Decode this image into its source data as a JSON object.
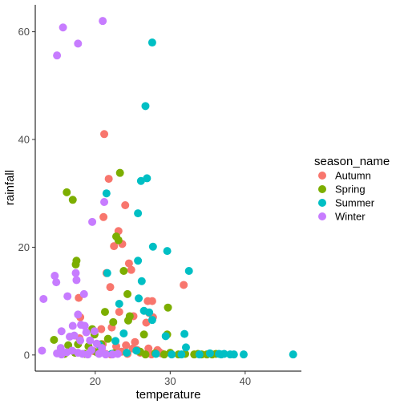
{
  "chart_data": {
    "type": "scatter",
    "xlabel": "temperature",
    "ylabel": "rainfall",
    "xlim": [
      12,
      47.5
    ],
    "ylim": [
      -3,
      65
    ],
    "xticks": [
      20,
      30,
      40
    ],
    "yticks": [
      0,
      20,
      40,
      60
    ],
    "grid": false,
    "legend": {
      "title": "season_name",
      "placement": "right"
    },
    "series": [
      {
        "name": "Autumn",
        "color": "#F8766D",
        "points": [
          [
            21.2,
            41.0
          ],
          [
            21.8,
            32.7
          ],
          [
            23.1,
            23.0
          ],
          [
            24.0,
            27.8
          ],
          [
            23.6,
            20.6
          ],
          [
            21.1,
            25.6
          ],
          [
            22.5,
            20.2
          ],
          [
            24.5,
            17.0
          ],
          [
            24.8,
            15.8
          ],
          [
            22.0,
            12.6
          ],
          [
            21.5,
            15.2
          ],
          [
            27.0,
            10.0
          ],
          [
            27.6,
            10.0
          ],
          [
            27.2,
            7.8
          ],
          [
            27.7,
            7.0
          ],
          [
            26.8,
            6.0
          ],
          [
            25.1,
            7.2
          ],
          [
            23.2,
            8.0
          ],
          [
            22.2,
            5.1
          ],
          [
            20.8,
            4.8
          ],
          [
            21.0,
            2.0
          ],
          [
            22.8,
            1.6
          ],
          [
            24.1,
            1.8
          ],
          [
            25.6,
            0.9
          ],
          [
            25.0,
            1.2
          ],
          [
            25.3,
            2.4
          ],
          [
            27.1,
            1.2
          ],
          [
            28.3,
            0.9
          ],
          [
            28.5,
            0.6
          ],
          [
            31.8,
            13.0
          ],
          [
            17.8,
            10.6
          ],
          [
            17.9,
            3.1
          ],
          [
            18.0,
            7.0
          ],
          [
            21.4,
            0.2
          ],
          [
            22.1,
            0.1
          ],
          [
            22.9,
            0.3
          ],
          [
            23.5,
            0.6
          ],
          [
            24.3,
            0.2
          ],
          [
            26.0,
            0.4
          ],
          [
            27.5,
            0.1
          ],
          [
            28.8,
            0.3
          ],
          [
            19.8,
            0.7
          ]
        ]
      },
      {
        "name": "Spring",
        "color": "#7CAE00",
        "points": [
          [
            23.3,
            33.8
          ],
          [
            16.2,
            30.2
          ],
          [
            17.0,
            28.8
          ],
          [
            22.8,
            22.0
          ],
          [
            23.1,
            21.3
          ],
          [
            17.5,
            17.5
          ],
          [
            17.4,
            16.8
          ],
          [
            23.8,
            15.6
          ],
          [
            24.3,
            11.3
          ],
          [
            29.7,
            8.8
          ],
          [
            21.3,
            8.0
          ],
          [
            24.6,
            7.2
          ],
          [
            24.4,
            6.4
          ],
          [
            22.4,
            6.1
          ],
          [
            19.6,
            4.8
          ],
          [
            19.9,
            3.8
          ],
          [
            21.7,
            3.0
          ],
          [
            26.5,
            3.8
          ],
          [
            29.6,
            3.8
          ],
          [
            14.5,
            2.8
          ],
          [
            16.4,
            1.8
          ],
          [
            17.7,
            2.0
          ],
          [
            19.1,
            1.6
          ],
          [
            20.8,
            2.0
          ],
          [
            26.0,
            0.6
          ],
          [
            32.0,
            0.2
          ],
          [
            33.2,
            0.1
          ],
          [
            34.2,
            0.1
          ],
          [
            34.9,
            0.1
          ],
          [
            35.6,
            0.1
          ],
          [
            36.1,
            0.2
          ],
          [
            28.0,
            0.3
          ],
          [
            30.0,
            0.4
          ],
          [
            17.3,
            0.4
          ],
          [
            15.9,
            0.2
          ],
          [
            18.6,
            0.2
          ],
          [
            22.5,
            0.3
          ],
          [
            26.7,
            0.1
          ],
          [
            29.2,
            0.1
          ],
          [
            31.1,
            0.1
          ],
          [
            33.7,
            0.2
          ],
          [
            20.2,
            0.5
          ]
        ]
      },
      {
        "name": "Summer",
        "color": "#00BFC4",
        "points": [
          [
            27.6,
            58.0
          ],
          [
            26.7,
            46.2
          ],
          [
            26.9,
            32.8
          ],
          [
            26.1,
            32.3
          ],
          [
            21.5,
            30.0
          ],
          [
            25.7,
            26.3
          ],
          [
            27.7,
            20.1
          ],
          [
            29.6,
            19.3
          ],
          [
            25.7,
            17.5
          ],
          [
            32.5,
            15.6
          ],
          [
            21.6,
            15.2
          ],
          [
            26.2,
            13.7
          ],
          [
            25.8,
            10.5
          ],
          [
            23.2,
            9.5
          ],
          [
            26.5,
            8.2
          ],
          [
            27.2,
            7.9
          ],
          [
            27.6,
            6.5
          ],
          [
            23.8,
            4.0
          ],
          [
            31.9,
            3.9
          ],
          [
            29.4,
            3.5
          ],
          [
            22.7,
            2.6
          ],
          [
            20.5,
            1.9
          ],
          [
            32.1,
            1.4
          ],
          [
            25.5,
            0.8
          ],
          [
            35.3,
            0.3
          ],
          [
            36.5,
            0.2
          ],
          [
            37.2,
            0.2
          ],
          [
            38.0,
            0.1
          ],
          [
            38.5,
            0.1
          ],
          [
            39.8,
            0.1
          ],
          [
            46.4,
            0.1
          ],
          [
            36.8,
            0.1
          ],
          [
            28.1,
            0.2
          ],
          [
            30.2,
            0.1
          ],
          [
            24.2,
            0.4
          ],
          [
            22.2,
            0.2
          ],
          [
            33.9,
            0.1
          ],
          [
            31.5,
            0.1
          ]
        ]
      },
      {
        "name": "Winter",
        "color": "#C77CFF",
        "points": [
          [
            21.0,
            62.0
          ],
          [
            15.7,
            60.8
          ],
          [
            17.7,
            57.8
          ],
          [
            14.9,
            55.6
          ],
          [
            21.2,
            28.4
          ],
          [
            19.6,
            24.7
          ],
          [
            14.6,
            14.7
          ],
          [
            14.8,
            13.5
          ],
          [
            17.4,
            15.2
          ],
          [
            17.5,
            13.9
          ],
          [
            18.5,
            11.3
          ],
          [
            16.3,
            10.9
          ],
          [
            13.1,
            10.4
          ],
          [
            17.7,
            7.5
          ],
          [
            18.1,
            5.6
          ],
          [
            18.6,
            5.4
          ],
          [
            18.8,
            4.2
          ],
          [
            19.9,
            4.4
          ],
          [
            17.0,
            5.4
          ],
          [
            17.2,
            3.6
          ],
          [
            16.6,
            3.4
          ],
          [
            15.5,
            4.4
          ],
          [
            18.0,
            2.7
          ],
          [
            19.3,
            2.7
          ],
          [
            20.2,
            2.1
          ],
          [
            20.9,
            1.3
          ],
          [
            15.4,
            1.3
          ],
          [
            16.2,
            0.5
          ],
          [
            16.9,
            0.8
          ],
          [
            14.9,
            0.3
          ],
          [
            15.5,
            0.1
          ],
          [
            12.9,
            0.8
          ],
          [
            17.7,
            0.4
          ],
          [
            18.3,
            0.2
          ],
          [
            19.0,
            0.1
          ],
          [
            20.5,
            0.2
          ],
          [
            21.4,
            0.1
          ],
          [
            22.3,
            0.1
          ],
          [
            23.0,
            0.2
          ],
          [
            19.5,
            0.9
          ]
        ]
      }
    ]
  }
}
